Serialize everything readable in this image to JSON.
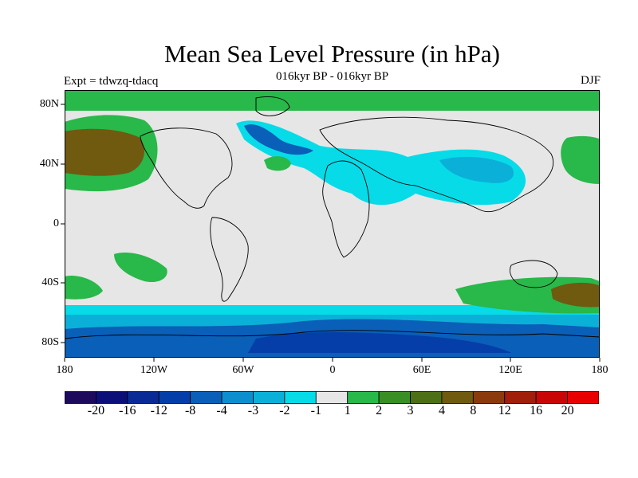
{
  "header": {
    "title": "Mean Sea Level Pressure (in hPa)",
    "subtitle": "016kyr BP - 016kyr BP",
    "experiment": "Expt = tdwzq-tdacq",
    "season": "DJF"
  },
  "axes": {
    "lat_labels": [
      "80N",
      "40N",
      "0",
      "40S",
      "80S"
    ],
    "lon_labels": [
      "180",
      "120W",
      "60W",
      "0",
      "60E",
      "120E",
      "180"
    ]
  },
  "colorbar": {
    "labels": [
      "-20",
      "-16",
      "-12",
      "-8",
      "-4",
      "-3",
      "-2",
      "-1",
      "1",
      "2",
      "3",
      "4",
      "8",
      "12",
      "16",
      "20"
    ],
    "colors": [
      "#1d0a5c",
      "#0c0f78",
      "#0a2a95",
      "#053ea8",
      "#0a5fb8",
      "#0d8fcf",
      "#0bb0d8",
      "#07dbe8",
      "#e6e6e6",
      "#29b84a",
      "#3a8f24",
      "#4d6f16",
      "#6f5a10",
      "#8a3a0d",
      "#a01e0a",
      "#c80606",
      "#e80000"
    ]
  },
  "colors": {
    "neutral": "#e6e6e6",
    "ocean_light_blue": "#07dbe8",
    "mid_blue": "#0bb0d8",
    "deep_blue": "#0a5fb8",
    "green": "#29b84a",
    "dark_green": "#3a8f24",
    "olive_brown": "#6f5a10"
  }
}
